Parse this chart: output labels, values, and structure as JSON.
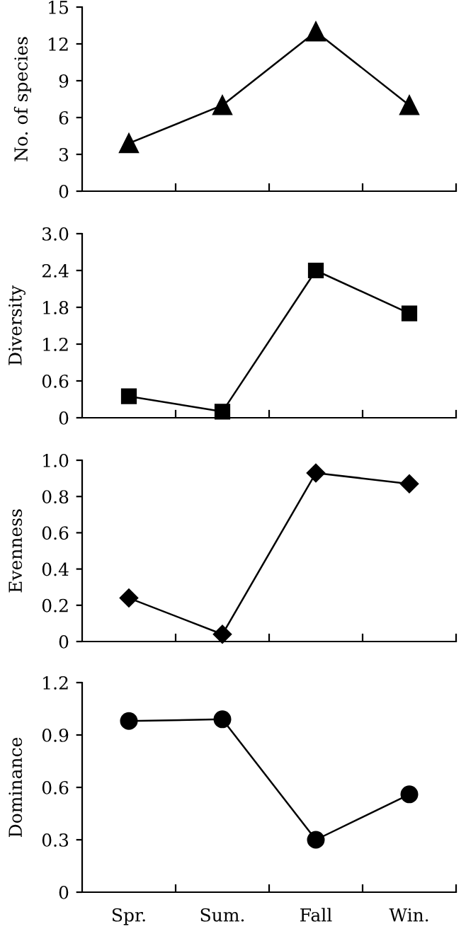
{
  "chart_data": [
    {
      "type": "line",
      "categories": [
        null,
        null,
        null,
        null
      ],
      "ylabel": "No. of species",
      "marker": "triangle",
      "ylim": [
        0,
        15
      ],
      "yticks": [
        0,
        3,
        6,
        9,
        12,
        15
      ],
      "series": [
        {
          "color": "#000000",
          "values": [
            3.9,
            7,
            13,
            7
          ]
        }
      ]
    },
    {
      "type": "line",
      "categories": [
        null,
        null,
        null,
        null
      ],
      "ylabel": "Diversity",
      "marker": "square",
      "ylim": [
        0,
        3.0
      ],
      "yticks": [
        0,
        {
          "value": 0.6,
          "label": "0.6"
        },
        {
          "value": 1.2,
          "label": "1.2"
        },
        {
          "value": 1.8,
          "label": "1.8"
        },
        {
          "value": 2.4,
          "label": "2.4"
        },
        {
          "value": 3.0,
          "label": "3.0"
        }
      ],
      "series": [
        {
          "color": "#000000",
          "values": [
            0.35,
            0.1,
            2.4,
            1.7
          ]
        }
      ]
    },
    {
      "type": "line",
      "categories": [
        null,
        null,
        null,
        null
      ],
      "ylabel": "Evenness",
      "marker": "diamond",
      "ylim": [
        0,
        1.0
      ],
      "yticks": [
        0,
        {
          "value": 0.2,
          "label": "0.2"
        },
        {
          "value": 0.4,
          "label": "0.4"
        },
        {
          "value": 0.6,
          "label": "0.6"
        },
        {
          "value": 0.8,
          "label": "0.8"
        },
        {
          "value": 1.0,
          "label": "1.0"
        }
      ],
      "series": [
        {
          "color": "#000000",
          "values": [
            0.24,
            0.04,
            0.93,
            0.87
          ]
        }
      ]
    },
    {
      "type": "line",
      "categories": [
        "Spr.",
        "Sum.",
        "Fall",
        "Win."
      ],
      "ylabel": "Dominance",
      "marker": "circle",
      "ylim": [
        0,
        1.2
      ],
      "yticks": [
        0,
        {
          "value": 0.3,
          "label": "0.3"
        },
        {
          "value": 0.6,
          "label": "0.6"
        },
        {
          "value": 0.9,
          "label": "0.9"
        },
        {
          "value": 1.2,
          "label": "1.2"
        }
      ],
      "series": [
        {
          "color": "#000000",
          "values": [
            0.98,
            0.99,
            0.3,
            0.56
          ]
        }
      ]
    }
  ]
}
